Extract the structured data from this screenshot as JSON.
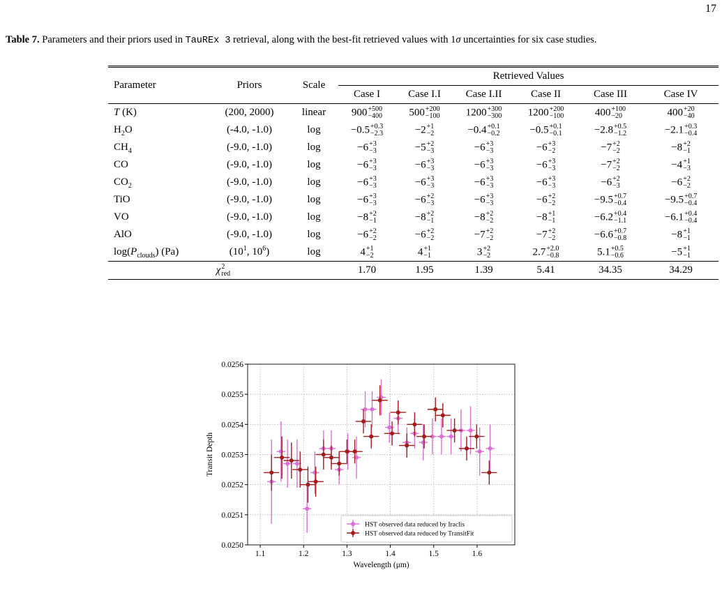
{
  "page_number": "17",
  "caption": {
    "label": "Table 7.",
    "parts": [
      "Parameters and their priors used in ",
      "TauREx 3",
      " retrieval, along with the best-fit retrieved values with 1",
      "σ",
      " uncertainties for six case studies."
    ]
  },
  "table": {
    "header": [
      "Parameter",
      "Priors",
      "Scale",
      "Retrieved Values"
    ],
    "cases": [
      "Case I",
      "Case I.I",
      "Case I.II",
      "Case II",
      "Case III",
      "Case IV"
    ],
    "rows": [
      {
        "param": [
          {
            "i": "T"
          },
          {
            "t": " (K)"
          }
        ],
        "prior": [
          {
            "t": "(200, 2000)"
          }
        ],
        "scale": "linear",
        "values": [
          {
            "v": "900",
            "up": "+500",
            "lo": "−400"
          },
          {
            "v": "500",
            "up": "+200",
            "lo": "−100"
          },
          {
            "v": "1200",
            "up": "+300",
            "lo": "−300"
          },
          {
            "v": "1200",
            "up": "+200",
            "lo": "−100"
          },
          {
            "v": "400",
            "up": "+100",
            "lo": "−20"
          },
          {
            "v": "400",
            "up": "+20",
            "lo": "−40"
          }
        ]
      },
      {
        "param": [
          {
            "t": "H"
          },
          {
            "sub": "2"
          },
          {
            "t": "O"
          }
        ],
        "prior": [
          {
            "t": "(-4.0, -1.0)"
          }
        ],
        "scale": "log",
        "values": [
          {
            "v": "−0.5",
            "up": "+0.3",
            "lo": "−2.3"
          },
          {
            "v": "−2",
            "up": "+1",
            "lo": "−2"
          },
          {
            "v": "−0.4",
            "up": "+0.1",
            "lo": "−0.2"
          },
          {
            "v": "−0.5",
            "up": "+0.1",
            "lo": "−0.1"
          },
          {
            "v": "−2.8",
            "up": "+0.5",
            "lo": "−1.2"
          },
          {
            "v": "−2.1",
            "up": "+0.3",
            "lo": "−0.4"
          }
        ]
      },
      {
        "param": [
          {
            "t": "CH"
          },
          {
            "sub": "4"
          }
        ],
        "prior": [
          {
            "t": "(-9.0, -1.0)"
          }
        ],
        "scale": "log",
        "values": [
          {
            "v": "−6",
            "up": "+3",
            "lo": "−3"
          },
          {
            "v": "−5",
            "up": "+2",
            "lo": "−3"
          },
          {
            "v": "−6",
            "up": "+3",
            "lo": "−3"
          },
          {
            "v": "−6",
            "up": "+3",
            "lo": "−2"
          },
          {
            "v": "−7",
            "up": "+2",
            "lo": "−2"
          },
          {
            "v": "−8",
            "up": "+2",
            "lo": "−1"
          }
        ]
      },
      {
        "param": [
          {
            "t": "CO"
          }
        ],
        "prior": [
          {
            "t": "(-9.0, -1.0)"
          }
        ],
        "scale": "log",
        "values": [
          {
            "v": "−6",
            "up": "+3",
            "lo": "−3"
          },
          {
            "v": "−6",
            "up": "+3",
            "lo": "−3"
          },
          {
            "v": "−6",
            "up": "+3",
            "lo": "−3"
          },
          {
            "v": "−6",
            "up": "+3",
            "lo": "−3"
          },
          {
            "v": "−7",
            "up": "+2",
            "lo": "−2"
          },
          {
            "v": "−4",
            "up": "+1",
            "lo": "−3"
          }
        ]
      },
      {
        "param": [
          {
            "t": "CO"
          },
          {
            "sub": "2"
          }
        ],
        "prior": [
          {
            "t": "(-9.0, -1.0)"
          }
        ],
        "scale": "log",
        "values": [
          {
            "v": "−6",
            "up": "+3",
            "lo": "−3"
          },
          {
            "v": "−6",
            "up": "+3",
            "lo": "−3"
          },
          {
            "v": "−6",
            "up": "+3",
            "lo": "−3"
          },
          {
            "v": "−6",
            "up": "+3",
            "lo": "−3"
          },
          {
            "v": "−6",
            "up": "+2",
            "lo": "−3"
          },
          {
            "v": "−6",
            "up": "+2",
            "lo": "−2"
          }
        ]
      },
      {
        "param": [
          {
            "t": "TiO"
          }
        ],
        "prior": [
          {
            "t": "(-9.0, -1.0)"
          }
        ],
        "scale": "log",
        "values": [
          {
            "v": "−6",
            "up": "+3",
            "lo": "−3"
          },
          {
            "v": "−6",
            "up": "+2",
            "lo": "−3"
          },
          {
            "v": "−6",
            "up": "+3",
            "lo": "−3"
          },
          {
            "v": "−6",
            "up": "+2",
            "lo": "−2"
          },
          {
            "v": "−9.5",
            "up": "+0.7",
            "lo": "−0.4"
          },
          {
            "v": "−9.5",
            "up": "+0.7",
            "lo": "−0.4"
          }
        ]
      },
      {
        "param": [
          {
            "t": "VO"
          }
        ],
        "prior": [
          {
            "t": "(-9.0, -1.0)"
          }
        ],
        "scale": "log",
        "values": [
          {
            "v": "−8",
            "up": "+2",
            "lo": "−1"
          },
          {
            "v": "−8",
            "up": "+2",
            "lo": "−1"
          },
          {
            "v": "−8",
            "up": "+2",
            "lo": "−2"
          },
          {
            "v": "−8",
            "up": "+1",
            "lo": "−1"
          },
          {
            "v": "−6.2",
            "up": "+0.4",
            "lo": "−1.1"
          },
          {
            "v": "−6.1",
            "up": "+0.4",
            "lo": "−0.4"
          }
        ]
      },
      {
        "param": [
          {
            "t": "AlO"
          }
        ],
        "prior": [
          {
            "t": "(-9.0, -1.0)"
          }
        ],
        "scale": "log",
        "values": [
          {
            "v": "−6",
            "up": "+2",
            "lo": "−2"
          },
          {
            "v": "−6",
            "up": "+2",
            "lo": "−2"
          },
          {
            "v": "−7",
            "up": "+2",
            "lo": "−2"
          },
          {
            "v": "−7",
            "up": "+2",
            "lo": "−2"
          },
          {
            "v": "−6.6",
            "up": "+0.7",
            "lo": "−0.8"
          },
          {
            "v": "−8",
            "up": "+1",
            "lo": "−1"
          }
        ]
      },
      {
        "param": [
          {
            "t": "log("
          },
          {
            "i": "P"
          },
          {
            "sub": "clouds"
          },
          {
            "t": ") (Pa)"
          }
        ],
        "prior": [
          {
            "t": "(10"
          },
          {
            "sup": "1"
          },
          {
            "t": ", 10"
          },
          {
            "sup": "6"
          },
          {
            "t": ")"
          }
        ],
        "scale": "log",
        "values": [
          {
            "v": "4",
            "up": "+1",
            "lo": "−2"
          },
          {
            "v": "4",
            "up": "+1",
            "lo": "−1"
          },
          {
            "v": "3",
            "up": "+2",
            "lo": "−2"
          },
          {
            "v": "2.7",
            "up": "+2.0",
            "lo": "−0.8"
          },
          {
            "v": "5.1",
            "up": "+0.5",
            "lo": "−0.6"
          },
          {
            "v": "−5",
            "up": "+1",
            "lo": "−1"
          }
        ]
      }
    ],
    "chi_label": [
      {
        "i": "χ"
      },
      {
        "sup": "2",
        "sub": "red"
      }
    ],
    "chi": [
      "1.70",
      "1.95",
      "1.39",
      "5.41",
      "34.35",
      "34.29"
    ]
  },
  "chart_data": {
    "type": "errorbar",
    "xlabel": "Wavelength (μm)",
    "ylabel": "Transit Depth",
    "xlim": [
      1.071,
      1.687
    ],
    "ylim": [
      0.025,
      0.0256
    ],
    "xticks": [
      1.1,
      1.2,
      1.3,
      1.4,
      1.5,
      1.6
    ],
    "yticks": [
      {
        "value": 0.025,
        "label": "0.0250"
      },
      0.0251,
      0.0252,
      0.0253,
      0.0254,
      0.0255,
      0.0256
    ],
    "grid": true,
    "legend": "lower right",
    "series": [
      {
        "name": "HST observed data reduced by Iraclis",
        "color": "#da70d6",
        "xerr": 0.01,
        "x": [
          1.126,
          1.148,
          1.163,
          1.185,
          1.208,
          1.226,
          1.246,
          1.264,
          1.282,
          1.302,
          1.322,
          1.342,
          1.358,
          1.379,
          1.398,
          1.418,
          1.438,
          1.456,
          1.476,
          1.497,
          1.518,
          1.54,
          1.563,
          1.585,
          1.606,
          1.63
        ],
        "values": [
          0.02521,
          0.02531,
          0.02527,
          0.02527,
          0.02512,
          0.02524,
          0.02532,
          0.02532,
          0.02525,
          0.02531,
          0.02529,
          0.02545,
          0.02545,
          0.02549,
          0.02539,
          0.02542,
          0.02534,
          0.02537,
          0.02534,
          0.02536,
          0.02536,
          0.02536,
          0.02538,
          0.02538,
          0.02531,
          0.02532
        ],
        "yerr": [
          0.00014,
          0.0001,
          8e-05,
          8e-05,
          8e-05,
          7e-05,
          6e-05,
          6e-05,
          5e-05,
          6e-05,
          7e-05,
          6e-05,
          6e-05,
          6e-05,
          5e-05,
          5e-05,
          5e-05,
          5e-05,
          6e-05,
          6e-05,
          6e-05,
          6e-05,
          7e-05,
          8e-05,
          8e-05,
          8e-05
        ]
      },
      {
        "name": "HST observed data reduced by TransitFit",
        "color": "#a11d1d",
        "xerr": 0.018,
        "x": [
          1.126,
          1.15,
          1.172,
          1.192,
          1.21,
          1.228,
          1.246,
          1.264,
          1.282,
          1.3,
          1.318,
          1.338,
          1.356,
          1.376,
          1.404,
          1.418,
          1.438,
          1.456,
          1.478,
          1.504,
          1.521,
          1.548,
          1.576,
          1.599,
          1.628
        ],
        "values": [
          0.02524,
          0.02529,
          0.02528,
          0.02525,
          0.0252,
          0.02521,
          0.0253,
          0.02529,
          0.02527,
          0.02531,
          0.02531,
          0.02541,
          0.02536,
          0.02548,
          0.02537,
          0.02544,
          0.02533,
          0.0254,
          0.02536,
          0.02545,
          0.02543,
          0.02538,
          0.02532,
          0.02536,
          0.02524
        ],
        "yerr": [
          6e-05,
          7e-05,
          6e-05,
          6e-05,
          6e-05,
          5e-05,
          5e-05,
          4e-05,
          4e-05,
          4e-05,
          4e-05,
          4e-05,
          4e-05,
          5e-05,
          4e-05,
          4e-05,
          4e-05,
          4e-05,
          4e-05,
          4e-05,
          4e-05,
          4e-05,
          4e-05,
          4e-05,
          4e-05
        ]
      }
    ]
  }
}
